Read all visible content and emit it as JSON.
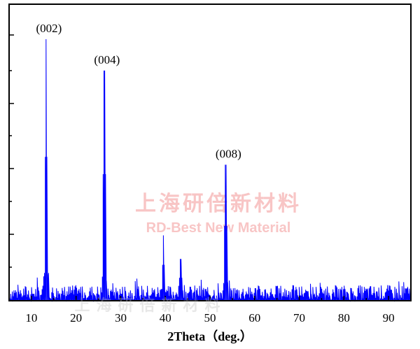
{
  "chart_data": {
    "type": "line",
    "title": "",
    "xlabel": "2Theta（deg.）",
    "ylabel": "",
    "xlim": [
      5,
      95
    ],
    "ylim": [
      0,
      100
    ],
    "xticks": [
      10,
      20,
      30,
      40,
      50,
      60,
      70,
      80,
      90
    ],
    "xtick_labels": [
      "10",
      "20",
      "30",
      "40",
      "50",
      "60",
      "70",
      "80",
      "90"
    ],
    "y_tick_labels_shown": false,
    "grid": false,
    "line_color": "#0000ff",
    "baseline_noise_level": 6,
    "peaks": [
      {
        "x": 13.3,
        "y": 100,
        "label": "(002)"
      },
      {
        "x": 26.3,
        "y": 88,
        "label": "(004)"
      },
      {
        "x": 39.6,
        "y": 25,
        "label": ""
      },
      {
        "x": 43.4,
        "y": 16,
        "label": ""
      },
      {
        "x": 53.5,
        "y": 52,
        "label": "(008)"
      }
    ]
  },
  "watermark": {
    "chinese": "上海研倍新材料",
    "english": "RD-Best New Material",
    "bottom": "上海研倍新材料"
  }
}
